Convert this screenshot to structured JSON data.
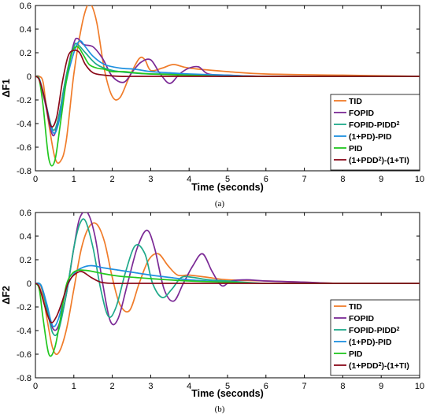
{
  "chart_data": [
    {
      "type": "line",
      "caption": "(a)",
      "xlabel": "Time (seconds)",
      "ylabel": "ΔF1",
      "xlim": [
        0,
        10
      ],
      "ylim": [
        -0.8,
        0.6
      ],
      "xticks": [
        "0",
        "1",
        "2",
        "3",
        "4",
        "5",
        "6",
        "7",
        "8",
        "9",
        "10"
      ],
      "yticks": [
        "-0.8",
        "-0.6",
        "-0.4",
        "-0.2",
        "0",
        "0.2",
        "0.4",
        "0.6"
      ],
      "grid": false,
      "legend_position": "bottom-right",
      "series": [
        {
          "name": "TID",
          "color": "#f07c2a",
          "x": [
            0,
            0.1,
            0.2,
            0.3,
            0.5,
            0.65,
            0.8,
            1.0,
            1.2,
            1.35,
            1.45,
            1.6,
            1.8,
            2.0,
            2.2,
            2.45,
            2.7,
            2.85,
            3.0,
            3.3,
            3.6,
            4.0,
            5.0,
            6.0,
            8.0,
            10.0
          ],
          "y": [
            0,
            0,
            -0.05,
            -0.3,
            -0.68,
            -0.72,
            -0.55,
            0.02,
            0.42,
            0.6,
            0.61,
            0.45,
            0.05,
            -0.17,
            -0.18,
            0.0,
            0.15,
            0.14,
            0.05,
            0.07,
            0.1,
            0.07,
            0.04,
            0.02,
            0.01,
            0
          ]
        },
        {
          "name": "FOPID",
          "color": "#7b2a96",
          "x": [
            0,
            0.1,
            0.25,
            0.45,
            0.6,
            0.8,
            1.0,
            1.1,
            1.25,
            1.5,
            1.75,
            2.0,
            2.3,
            2.55,
            2.75,
            3.0,
            3.25,
            3.5,
            3.75,
            4.0,
            4.25,
            4.5,
            5.0,
            6.0,
            8.0,
            10.0
          ],
          "y": [
            0,
            -0.02,
            -0.22,
            -0.5,
            -0.35,
            0.0,
            0.28,
            0.32,
            0.27,
            0.25,
            0.15,
            0.0,
            -0.05,
            0.05,
            0.12,
            0.14,
            0.02,
            -0.06,
            0.02,
            0.07,
            0.08,
            0.02,
            0.01,
            0.0,
            0.0,
            0
          ]
        },
        {
          "name": "FOPID-PIDD²",
          "color": "#1fa98a",
          "x": [
            0,
            0.1,
            0.25,
            0.45,
            0.6,
            0.8,
            1.0,
            1.1,
            1.3,
            1.6,
            2.0,
            2.5,
            3.0,
            3.5,
            4.0,
            5.0,
            6.0,
            8.0,
            10.0
          ],
          "y": [
            0,
            -0.02,
            -0.2,
            -0.45,
            -0.35,
            0.0,
            0.25,
            0.27,
            0.2,
            0.1,
            0.05,
            0.03,
            0.02,
            0.02,
            0.01,
            0.0,
            0.0,
            0.0,
            0
          ]
        },
        {
          "name": "(1+PD)-PID",
          "color": "#1e90e0",
          "x": [
            0,
            0.1,
            0.25,
            0.45,
            0.6,
            0.8,
            1.0,
            1.15,
            1.3,
            1.5,
            1.8,
            2.2,
            2.6,
            3.0,
            3.5,
            4.0,
            5.0,
            6.0,
            8.0,
            10.0
          ],
          "y": [
            0,
            -0.02,
            -0.2,
            -0.47,
            -0.4,
            -0.05,
            0.2,
            0.3,
            0.25,
            0.17,
            0.1,
            0.07,
            0.06,
            0.04,
            0.03,
            0.02,
            0.01,
            0.0,
            0.0,
            0
          ]
        },
        {
          "name": "PID",
          "color": "#22c71f",
          "x": [
            0,
            0.1,
            0.2,
            0.35,
            0.5,
            0.65,
            0.8,
            0.95,
            1.1,
            1.25,
            1.4,
            1.6,
            1.8,
            2.0,
            2.3,
            2.6,
            3.0,
            4.0,
            5.0,
            6.0,
            8.0,
            10.0
          ],
          "y": [
            0,
            -0.03,
            -0.25,
            -0.7,
            -0.72,
            -0.4,
            -0.05,
            0.2,
            0.25,
            0.18,
            0.1,
            0.07,
            0.06,
            0.04,
            0.04,
            0.03,
            0.02,
            0.01,
            0.0,
            0.0,
            0.0,
            0
          ]
        },
        {
          "name": "(1+PDD²)-(1+TI)",
          "color": "#8b0a1a",
          "x": [
            0,
            0.1,
            0.25,
            0.4,
            0.55,
            0.7,
            0.85,
            1.0,
            1.15,
            1.3,
            1.5,
            1.8,
            2.2,
            2.6,
            3.0,
            4.0,
            5.0,
            6.0,
            8.0,
            10.0
          ],
          "y": [
            0,
            -0.03,
            -0.2,
            -0.42,
            -0.35,
            -0.05,
            0.17,
            0.22,
            0.2,
            0.1,
            0.03,
            0.01,
            0.0,
            0.0,
            0.0,
            0.0,
            0.0,
            0.0,
            0.0,
            0
          ]
        }
      ]
    },
    {
      "type": "line",
      "caption": "(b)",
      "xlabel": "Time (seconds)",
      "ylabel": "ΔF2",
      "xlim": [
        0,
        10
      ],
      "ylim": [
        -0.8,
        0.6
      ],
      "xticks": [
        "0",
        "1",
        "2",
        "3",
        "4",
        "5",
        "6",
        "7",
        "8",
        "9",
        "10"
      ],
      "yticks": [
        "-0.8",
        "-0.6",
        "-0.4",
        "-0.2",
        "0",
        "0.2",
        "0.4",
        "0.6"
      ],
      "grid": false,
      "legend_position": "bottom-right",
      "series": [
        {
          "name": "TID",
          "color": "#f07c2a",
          "x": [
            0,
            0.15,
            0.3,
            0.45,
            0.6,
            0.8,
            1.0,
            1.2,
            1.4,
            1.6,
            1.8,
            2.0,
            2.2,
            2.45,
            2.7,
            2.95,
            3.2,
            3.45,
            3.7,
            4.0,
            4.5,
            5.0,
            6.0,
            7.0,
            8.0,
            10.0
          ],
          "y": [
            0,
            -0.03,
            -0.3,
            -0.55,
            -0.59,
            -0.4,
            -0.05,
            0.3,
            0.48,
            0.5,
            0.35,
            0.05,
            -0.18,
            -0.23,
            0.0,
            0.2,
            0.25,
            0.15,
            0.07,
            0.07,
            0.05,
            0.03,
            0.02,
            0.01,
            0.0,
            0
          ]
        },
        {
          "name": "FOPID",
          "color": "#7b2a96",
          "x": [
            0,
            0.15,
            0.3,
            0.45,
            0.6,
            0.8,
            1.0,
            1.15,
            1.35,
            1.55,
            1.75,
            1.95,
            2.15,
            2.4,
            2.65,
            2.9,
            3.1,
            3.35,
            3.6,
            3.85,
            4.1,
            4.35,
            4.6,
            4.85,
            5.1,
            5.5,
            6.0,
            7.0,
            8.0,
            10.0
          ],
          "y": [
            0,
            -0.02,
            -0.2,
            -0.38,
            -0.36,
            -0.1,
            0.3,
            0.55,
            0.6,
            0.4,
            0.0,
            -0.32,
            -0.3,
            0.0,
            0.3,
            0.45,
            0.3,
            -0.05,
            -0.15,
            0.0,
            0.15,
            0.25,
            0.1,
            -0.02,
            0.02,
            0.03,
            0.02,
            0.01,
            0.0,
            0
          ]
        },
        {
          "name": "FOPID-PIDD²",
          "color": "#1fa98a",
          "x": [
            0,
            0.15,
            0.3,
            0.45,
            0.6,
            0.8,
            1.0,
            1.15,
            1.3,
            1.5,
            1.7,
            1.9,
            2.1,
            2.35,
            2.6,
            2.85,
            3.05,
            3.3,
            3.55,
            3.8,
            4.1,
            4.5,
            5.0,
            6.0,
            8.0,
            10.0
          ],
          "y": [
            0,
            -0.02,
            -0.22,
            -0.42,
            -0.4,
            -0.1,
            0.3,
            0.5,
            0.53,
            0.3,
            -0.05,
            -0.28,
            -0.2,
            0.1,
            0.32,
            0.25,
            0.0,
            -0.12,
            -0.05,
            0.05,
            0.05,
            0.03,
            0.02,
            0.0,
            0.0,
            0
          ]
        },
        {
          "name": "(1+PD)-PID",
          "color": "#1e90e0",
          "x": [
            0,
            0.15,
            0.3,
            0.45,
            0.6,
            0.8,
            1.0,
            1.2,
            1.45,
            1.8,
            2.2,
            2.6,
            3.0,
            3.5,
            4.0,
            5.0,
            6.0,
            8.0,
            10.0
          ],
          "y": [
            0,
            -0.02,
            -0.18,
            -0.36,
            -0.3,
            -0.05,
            0.08,
            0.13,
            0.15,
            0.13,
            0.11,
            0.09,
            0.07,
            0.05,
            0.03,
            0.01,
            0.0,
            0.0,
            0
          ]
        },
        {
          "name": "PID",
          "color": "#22c71f",
          "x": [
            0,
            0.1,
            0.2,
            0.35,
            0.5,
            0.65,
            0.8,
            0.95,
            1.1,
            1.3,
            1.5,
            1.8,
            2.2,
            2.6,
            3.0,
            4.0,
            5.0,
            6.0,
            8.0,
            10.0
          ],
          "y": [
            0,
            -0.05,
            -0.3,
            -0.6,
            -0.55,
            -0.3,
            -0.02,
            0.08,
            0.11,
            0.11,
            0.1,
            0.08,
            0.06,
            0.05,
            0.04,
            0.02,
            0.01,
            0.0,
            0.0,
            0
          ]
        },
        {
          "name": "(1+PDD²)-(1+TI)",
          "color": "#8b0a1a",
          "x": [
            0,
            0.1,
            0.25,
            0.4,
            0.55,
            0.7,
            0.85,
            1.0,
            1.2,
            1.45,
            1.7,
            2.0,
            2.5,
            3.0,
            4.0,
            5.0,
            6.0,
            8.0,
            10.0
          ],
          "y": [
            0,
            -0.03,
            -0.2,
            -0.33,
            -0.28,
            -0.15,
            0.0,
            0.07,
            0.1,
            0.05,
            0.01,
            0.0,
            0.0,
            0.0,
            0.0,
            0.0,
            0.0,
            0.0,
            0
          ]
        }
      ]
    }
  ]
}
